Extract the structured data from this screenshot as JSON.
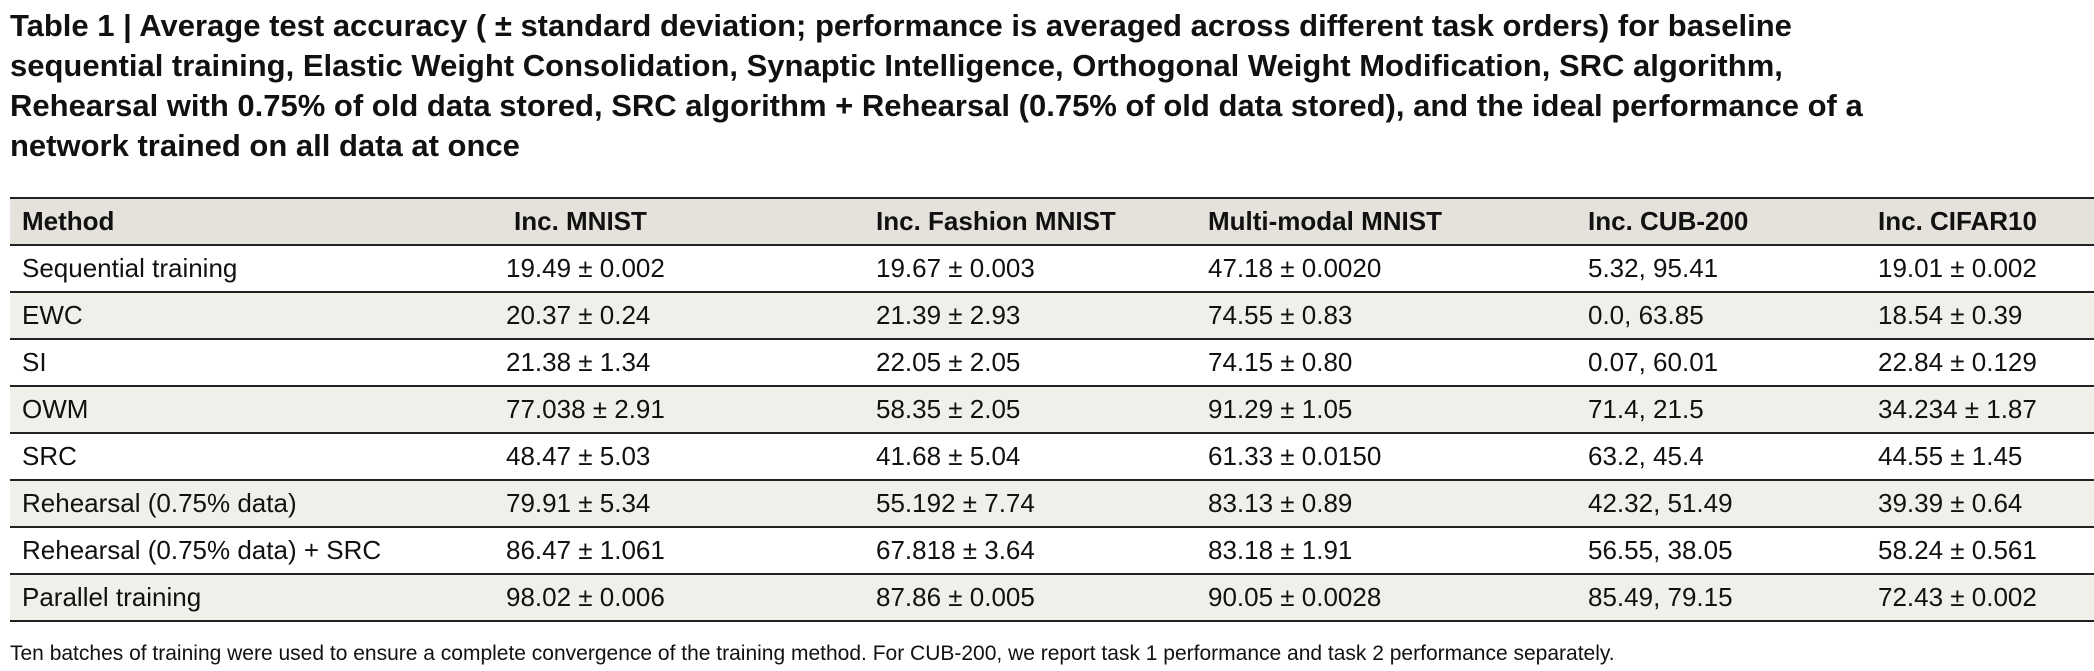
{
  "caption": {
    "lines": [
      "Table 1 | Average test accuracy ( ± standard deviation; performance is averaged across different task orders) for baseline",
      "sequential training, Elastic Weight Consolidation, Synaptic Intelligence, Orthogonal Weight Modification, SRC algorithm,",
      "Rehearsal with 0.75% of old data stored, SRC algorithm + Rehearsal (0.75% of old data stored), and the ideal performance of a",
      "network trained on all data at once"
    ]
  },
  "table": {
    "headers": [
      "Method",
      "Inc. MNIST",
      "Inc. Fashion MNIST",
      "Multi-modal MNIST",
      "Inc. CUB-200",
      "Inc. CIFAR10"
    ],
    "rows": [
      [
        "Sequential training",
        "19.49 ± 0.002",
        "19.67 ± 0.003",
        "47.18 ± 0.0020",
        "5.32, 95.41",
        "19.01 ± 0.002"
      ],
      [
        "EWC",
        "20.37 ± 0.24",
        "21.39 ± 2.93",
        "74.55 ± 0.83",
        "0.0, 63.85",
        "18.54 ± 0.39"
      ],
      [
        "SI",
        "21.38 ± 1.34",
        "22.05 ± 2.05",
        "74.15 ± 0.80",
        "0.07, 60.01",
        "22.84 ± 0.129"
      ],
      [
        "OWM",
        "77.038 ± 2.91",
        "58.35 ± 2.05",
        "91.29 ± 1.05",
        "71.4, 21.5",
        "34.234 ± 1.87"
      ],
      [
        "SRC",
        "48.47 ± 5.03",
        "41.68 ± 5.04",
        "61.33 ± 0.0150",
        "63.2, 45.4",
        "44.55 ± 1.45"
      ],
      [
        "Rehearsal (0.75% data)",
        "79.91 ± 5.34",
        "55.192 ± 7.74",
        "83.13 ± 0.89",
        "42.32, 51.49",
        "39.39 ± 0.64"
      ],
      [
        "Rehearsal (0.75% data) + SRC",
        "86.47 ± 1.061",
        "67.818 ± 3.64",
        "83.18 ± 1.91",
        "56.55, 38.05",
        "58.24 ± 0.561"
      ],
      [
        "Parallel training",
        "98.02 ± 0.006",
        "87.86 ± 0.005",
        "90.05 ± 0.0028",
        "85.49, 79.15",
        "72.43 ± 0.002"
      ]
    ]
  },
  "footnote": "Ten batches of training were used to ensure a complete convergence of the training method. For CUB-200, we report task 1 performance and task 2 performance separately."
}
